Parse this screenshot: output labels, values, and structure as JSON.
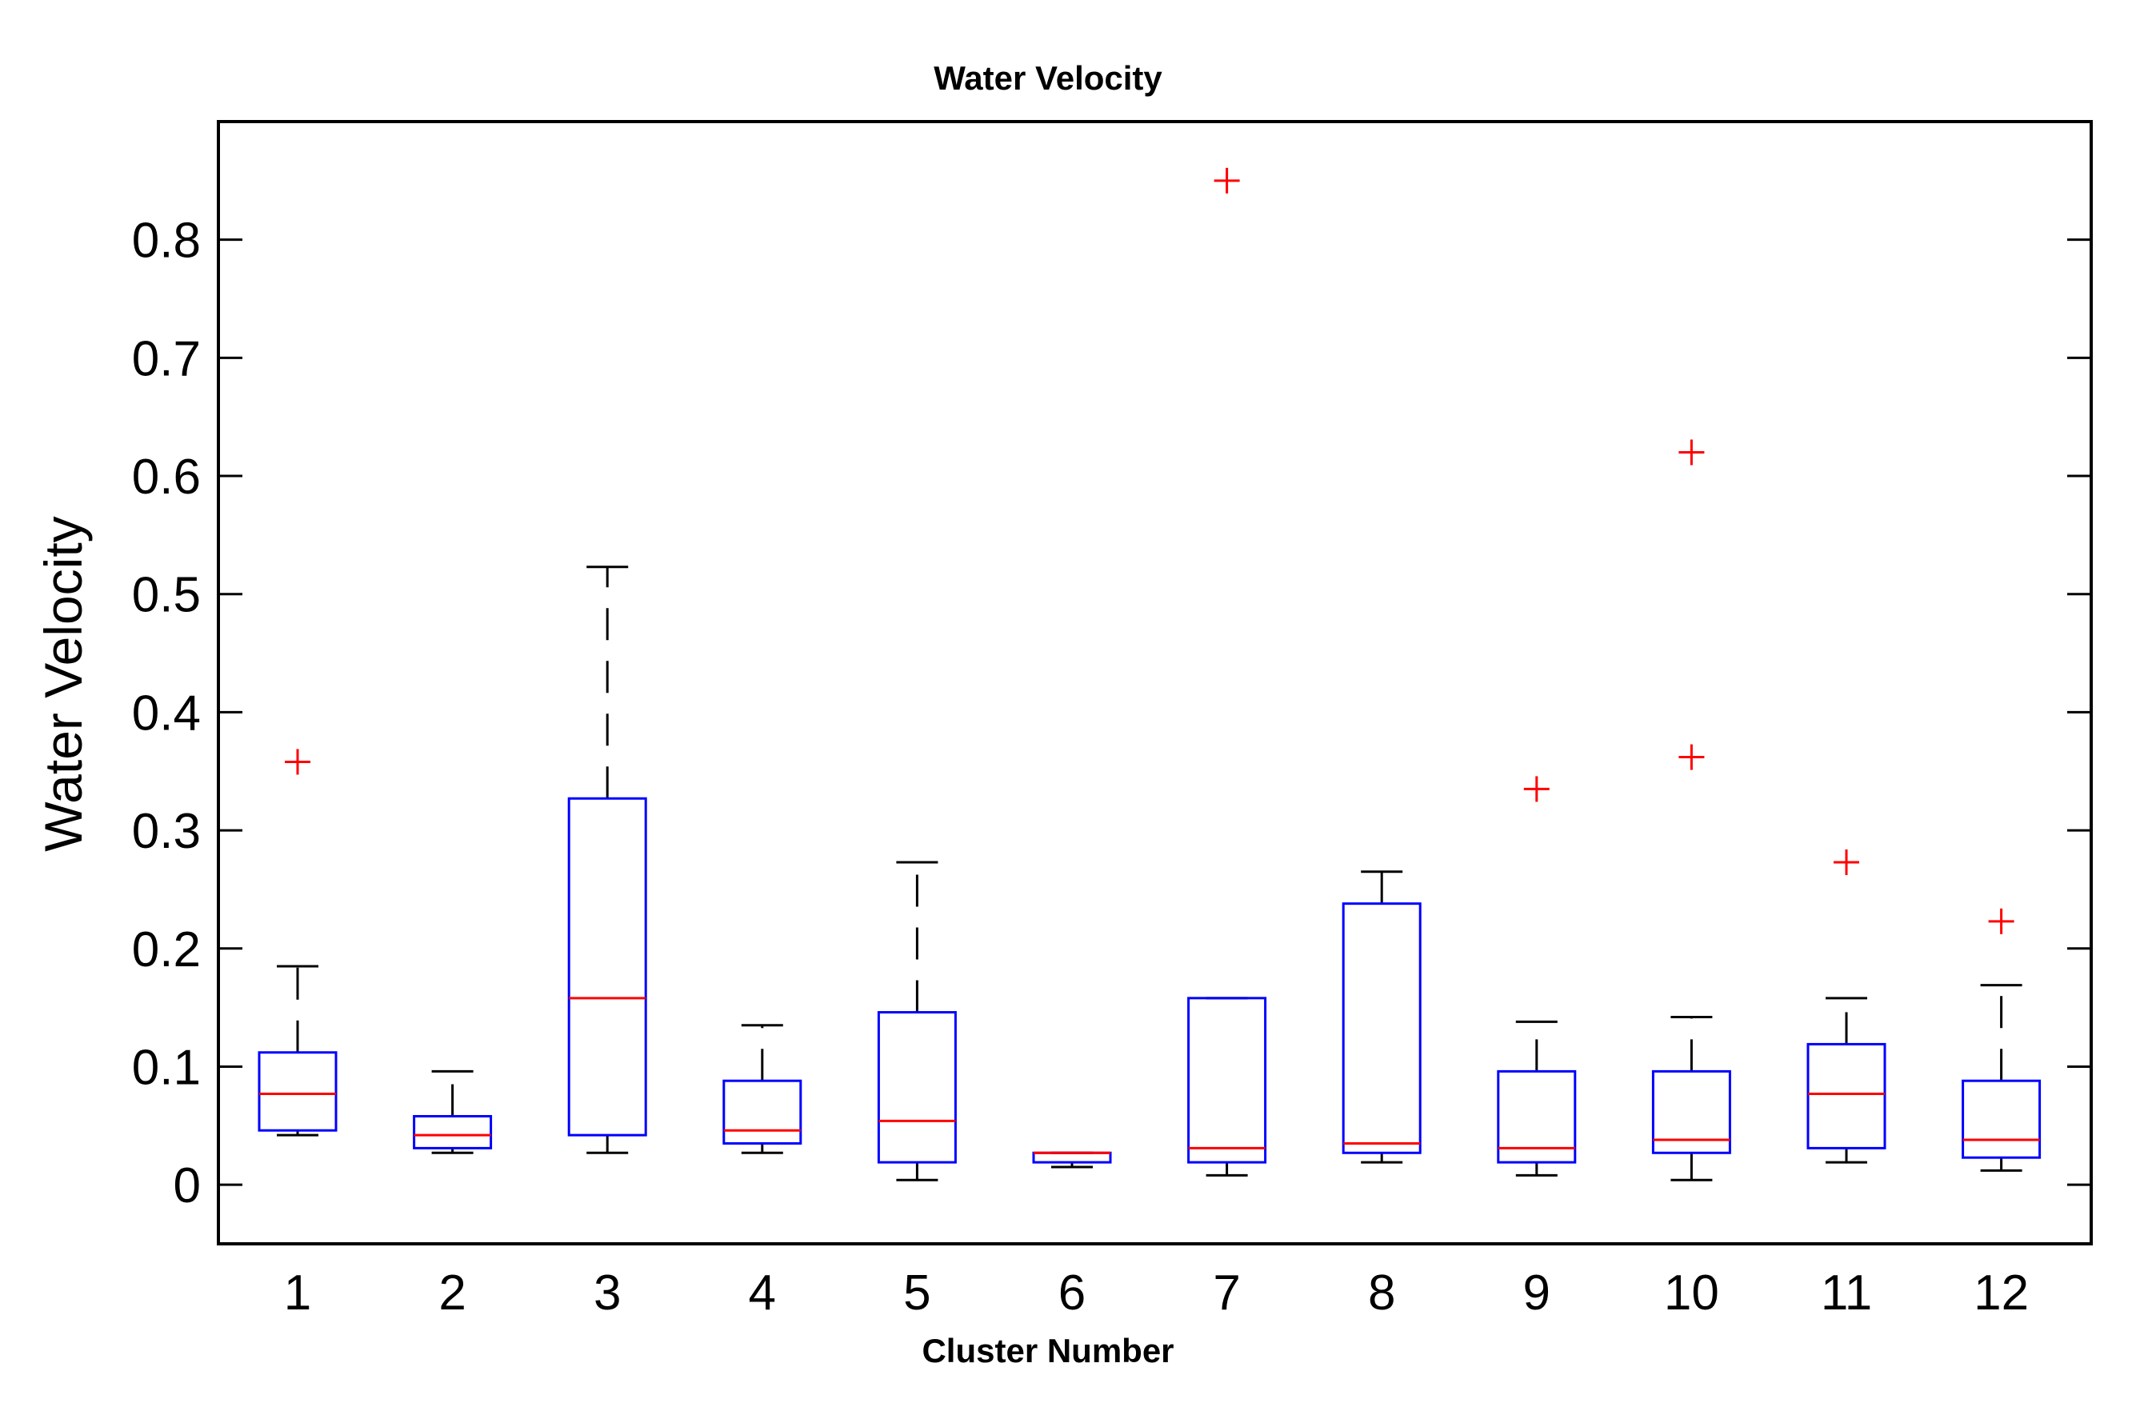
{
  "chart_data": {
    "type": "boxplot",
    "title": "Water Velocity",
    "xlabel": "Cluster Number",
    "ylabel": "Water Velocity",
    "ylim": [
      -0.05,
      0.9
    ],
    "yticks": [
      0,
      0.1,
      0.2,
      0.3,
      0.4,
      0.5,
      0.6,
      0.7,
      0.8
    ],
    "ytick_labels": [
      "0",
      "0.1",
      "0.2",
      "0.3",
      "0.4",
      "0.5",
      "0.6",
      "0.7",
      "0.8"
    ],
    "categories": [
      "1",
      "2",
      "3",
      "4",
      "5",
      "6",
      "7",
      "8",
      "9",
      "10",
      "11",
      "12"
    ],
    "colors": {
      "box": "#0000ff",
      "median": "#ff0000",
      "whisker": "#000000",
      "outlier": "#ff0000",
      "axis": "#000000"
    },
    "boxes": [
      {
        "label": "1",
        "whisker_low": 0.042,
        "q1": 0.046,
        "median": 0.077,
        "q3": 0.112,
        "whisker_high": 0.185,
        "outliers": [
          0.358
        ]
      },
      {
        "label": "2",
        "whisker_low": 0.027,
        "q1": 0.031,
        "median": 0.042,
        "q3": 0.058,
        "whisker_high": 0.096,
        "outliers": []
      },
      {
        "label": "3",
        "whisker_low": 0.027,
        "q1": 0.042,
        "median": 0.158,
        "q3": 0.327,
        "whisker_high": 0.523,
        "outliers": []
      },
      {
        "label": "4",
        "whisker_low": 0.027,
        "q1": 0.035,
        "median": 0.046,
        "q3": 0.088,
        "whisker_high": 0.135,
        "outliers": []
      },
      {
        "label": "5",
        "whisker_low": 0.004,
        "q1": 0.019,
        "median": 0.054,
        "q3": 0.146,
        "whisker_high": 0.273,
        "outliers": []
      },
      {
        "label": "6",
        "whisker_low": 0.015,
        "q1": 0.019,
        "median": 0.027,
        "q3": 0.027,
        "whisker_high": 0.027,
        "outliers": []
      },
      {
        "label": "7",
        "whisker_low": 0.008,
        "q1": 0.019,
        "median": 0.031,
        "q3": 0.158,
        "whisker_high": 0.158,
        "outliers": [
          0.85
        ]
      },
      {
        "label": "8",
        "whisker_low": 0.019,
        "q1": 0.027,
        "median": 0.035,
        "q3": 0.238,
        "whisker_high": 0.265,
        "outliers": []
      },
      {
        "label": "9",
        "whisker_low": 0.008,
        "q1": 0.019,
        "median": 0.031,
        "q3": 0.096,
        "whisker_high": 0.138,
        "outliers": [
          0.335
        ]
      },
      {
        "label": "10",
        "whisker_low": 0.004,
        "q1": 0.027,
        "median": 0.038,
        "q3": 0.096,
        "whisker_high": 0.142,
        "outliers": [
          0.362,
          0.62
        ]
      },
      {
        "label": "11",
        "whisker_low": 0.019,
        "q1": 0.031,
        "median": 0.077,
        "q3": 0.119,
        "whisker_high": 0.158,
        "outliers": [
          0.273
        ]
      },
      {
        "label": "12",
        "whisker_low": 0.012,
        "q1": 0.023,
        "median": 0.038,
        "q3": 0.088,
        "whisker_high": 0.169,
        "outliers": [
          0.223
        ]
      }
    ]
  }
}
